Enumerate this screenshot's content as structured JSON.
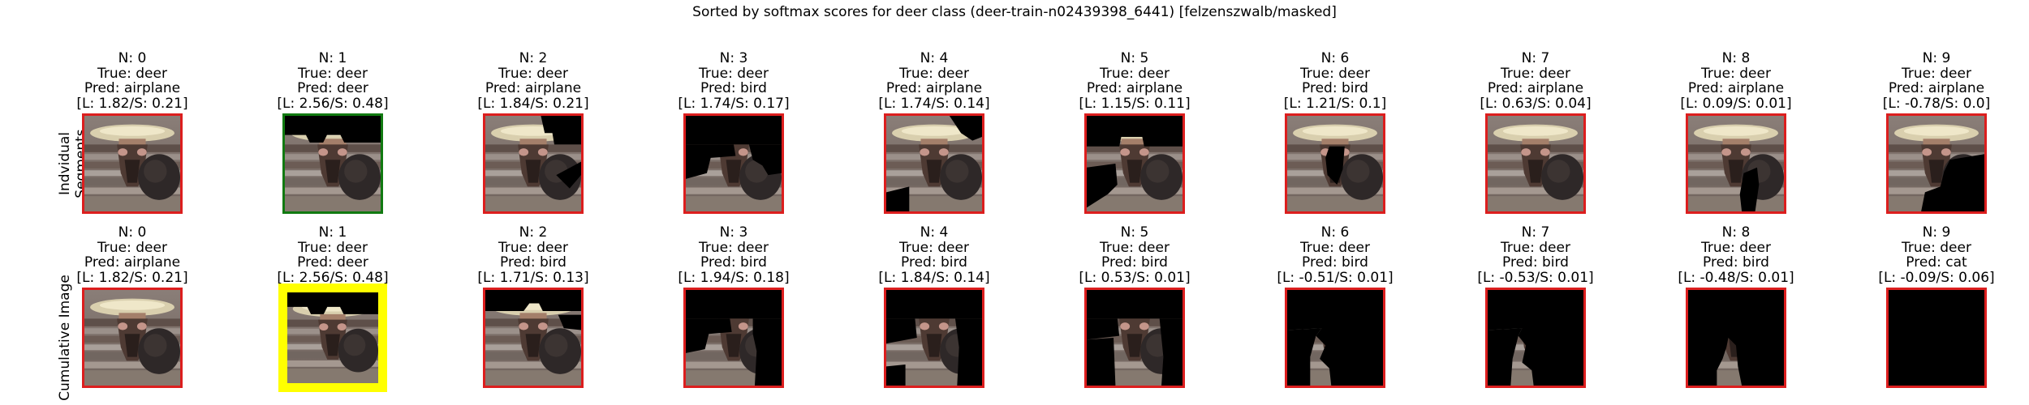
{
  "figure": {
    "title": "Sorted by softmax scores for deer class (deer-train-n02439398_6441) [felzenszwalb/masked]",
    "row_labels": [
      "Indvidual Segments",
      "Cumulative Image"
    ]
  },
  "chart_data": {
    "type": "image-grid",
    "title": "Sorted by softmax scores for deer class (deer-train-n02439398_6441) [felzenszwalb/masked]",
    "rows": [
      {
        "label": "Indvidual Segments",
        "panels": [
          {
            "n": "N: 0",
            "true": "True: deer",
            "pred": "Pred: airplane",
            "scores": "[L: 1.82/S: 0.21]",
            "border": "red",
            "mask": 0
          },
          {
            "n": "N: 1",
            "true": "True: deer",
            "pred": "Pred: deer",
            "scores": "[L: 2.56/S: 0.48]",
            "border": "green",
            "mask": 1
          },
          {
            "n": "N: 2",
            "true": "True: deer",
            "pred": "Pred: airplane",
            "scores": "[L: 1.84/S: 0.21]",
            "border": "red",
            "mask": 2
          },
          {
            "n": "N: 3",
            "true": "True: deer",
            "pred": "Pred: bird",
            "scores": "[L: 1.74/S: 0.17]",
            "border": "red",
            "mask": 3
          },
          {
            "n": "N: 4",
            "true": "True: deer",
            "pred": "Pred: airplane",
            "scores": "[L: 1.74/S: 0.14]",
            "border": "red",
            "mask": 4
          },
          {
            "n": "N: 5",
            "true": "True: deer",
            "pred": "Pred: airplane",
            "scores": "[L: 1.15/S: 0.11]",
            "border": "red",
            "mask": 5
          },
          {
            "n": "N: 6",
            "true": "True: deer",
            "pred": "Pred: bird",
            "scores": "[L: 1.21/S: 0.1]",
            "border": "red",
            "mask": 6
          },
          {
            "n": "N: 7",
            "true": "True: deer",
            "pred": "Pred: airplane",
            "scores": "[L: 0.63/S: 0.04]",
            "border": "red",
            "mask": 7
          },
          {
            "n": "N: 8",
            "true": "True: deer",
            "pred": "Pred: airplane",
            "scores": "[L: 0.09/S: 0.01]",
            "border": "red",
            "mask": 8
          },
          {
            "n": "N: 9",
            "true": "True: deer",
            "pred": "Pred: airplane",
            "scores": "[L: -0.78/S: 0.0]",
            "border": "red",
            "mask": 9
          }
        ]
      },
      {
        "label": "Cumulative Image",
        "panels": [
          {
            "n": "N: 0",
            "true": "True: deer",
            "pred": "Pred: airplane",
            "scores": "[L: 1.82/S: 0.21]",
            "border": "red",
            "mask": 10
          },
          {
            "n": "N: 1",
            "true": "True: deer",
            "pred": "Pred: deer",
            "scores": "[L: 2.56/S: 0.48]",
            "border": "yellow",
            "mask": 11
          },
          {
            "n": "N: 2",
            "true": "True: deer",
            "pred": "Pred: bird",
            "scores": "[L: 1.71/S: 0.13]",
            "border": "red",
            "mask": 12
          },
          {
            "n": "N: 3",
            "true": "True: deer",
            "pred": "Pred: bird",
            "scores": "[L: 1.94/S: 0.18]",
            "border": "red",
            "mask": 13
          },
          {
            "n": "N: 4",
            "true": "True: deer",
            "pred": "Pred: bird",
            "scores": "[L: 1.84/S: 0.14]",
            "border": "red",
            "mask": 14
          },
          {
            "n": "N: 5",
            "true": "True: deer",
            "pred": "Pred: bird",
            "scores": "[L: 0.53/S: 0.01]",
            "border": "red",
            "mask": 15
          },
          {
            "n": "N: 6",
            "true": "True: deer",
            "pred": "Pred: bird",
            "scores": "[L: -0.51/S: 0.01]",
            "border": "red",
            "mask": 16
          },
          {
            "n": "N: 7",
            "true": "True: deer",
            "pred": "Pred: bird",
            "scores": "[L: -0.53/S: 0.01]",
            "border": "red",
            "mask": 17
          },
          {
            "n": "N: 8",
            "true": "True: deer",
            "pred": "Pred: bird",
            "scores": "[L: -0.48/S: 0.01]",
            "border": "red",
            "mask": 18
          },
          {
            "n": "N: 9",
            "true": "True: deer",
            "pred": "Pred: cat",
            "scores": "[L: -0.09/S: 0.06]",
            "border": "red",
            "mask": 19
          }
        ]
      }
    ]
  },
  "colors": {
    "border_red": "#dc1e1e",
    "border_green": "#117a11",
    "border_yellow": "#ffff00",
    "mask": "#000000"
  }
}
